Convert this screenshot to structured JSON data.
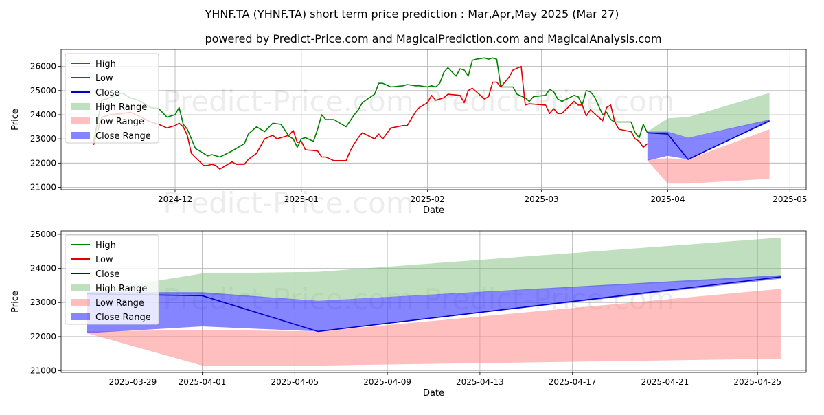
{
  "title": "YHNF.TA (YHNF.TA) short term price prediction : Mar,Apr,May 2025 (Mar 27)",
  "subtitle": "powered by Predict-Price.com and MagicalPrediction.com and MagicalAnalysis.com",
  "watermark": "Predict-Price.com",
  "colors": {
    "high": "#008000",
    "low": "#e00000",
    "close": "#0000cc",
    "high_range": "#7fbf7f",
    "low_range": "#ff8080",
    "close_range": "#3333ff"
  },
  "chart_data": [
    {
      "type": "line",
      "xlabel": "Date",
      "ylabel": "Price",
      "x_range": [
        "2024-11-03",
        "2025-05-05"
      ],
      "ylim": [
        20900,
        26700
      ],
      "xticks": [
        "2024-12-01",
        "2025-01-01",
        "2025-02-01",
        "2025-03-01",
        "2025-04-01",
        "2025-05-01"
      ],
      "xtick_labels": [
        "2024-12",
        "2025-01",
        "2025-02",
        "2025-03",
        "2025-04",
        "2025-05"
      ],
      "yticks": [
        21000,
        22000,
        23000,
        24000,
        25000,
        26000
      ],
      "grid": true,
      "legend": "top-left",
      "legend_entries": [
        "High",
        "Low",
        "Close",
        "High Range",
        "Low Range",
        "Close Range"
      ],
      "series": [
        {
          "name": "High",
          "x": [
            "2024-11-11",
            "2024-11-13",
            "2024-11-15",
            "2024-11-18",
            "2024-11-20",
            "2024-11-22",
            "2024-11-25",
            "2024-11-27",
            "2024-11-29",
            "2024-12-01",
            "2024-12-02",
            "2024-12-03",
            "2024-12-04",
            "2024-12-06",
            "2024-12-08",
            "2024-12-09",
            "2024-12-10",
            "2024-12-12",
            "2024-12-15",
            "2024-12-16",
            "2024-12-18",
            "2024-12-19",
            "2024-12-21",
            "2024-12-23",
            "2024-12-25",
            "2024-12-27",
            "2024-12-29",
            "2024-12-30",
            "2024-12-31",
            "2025-01-01",
            "2025-01-02",
            "2025-01-04",
            "2025-01-05",
            "2025-01-06",
            "2025-01-07",
            "2025-01-09",
            "2025-01-12",
            "2025-01-14",
            "2025-01-15",
            "2025-01-16",
            "2025-01-19",
            "2025-01-20",
            "2025-01-21",
            "2025-01-23",
            "2025-01-26",
            "2025-01-27",
            "2025-01-29",
            "2025-01-30",
            "2025-02-01",
            "2025-02-02",
            "2025-02-03",
            "2025-02-04",
            "2025-02-05",
            "2025-02-06",
            "2025-02-08",
            "2025-02-09",
            "2025-02-10",
            "2025-02-11",
            "2025-02-12",
            "2025-02-13",
            "2025-02-15",
            "2025-02-16",
            "2025-02-17",
            "2025-02-18",
            "2025-02-19",
            "2025-02-21",
            "2025-02-22",
            "2025-02-23",
            "2025-02-25",
            "2025-02-26",
            "2025-02-27",
            "2025-03-02",
            "2025-03-03",
            "2025-03-04",
            "2025-03-05",
            "2025-03-06",
            "2025-03-09",
            "2025-03-10",
            "2025-03-11",
            "2025-03-12",
            "2025-03-13",
            "2025-03-14",
            "2025-03-16",
            "2025-03-17",
            "2025-03-18",
            "2025-03-19",
            "2025-03-20",
            "2025-03-23",
            "2025-03-24",
            "2025-03-25",
            "2025-03-26",
            "2025-03-27"
          ],
          "values": [
            22900,
            24600,
            24700,
            24900,
            24700,
            24600,
            24300,
            24250,
            23900,
            24000,
            24300,
            23600,
            23400,
            22600,
            22400,
            22300,
            22350,
            22250,
            22500,
            22600,
            22800,
            23200,
            23500,
            23300,
            23650,
            23600,
            23100,
            23000,
            22650,
            23000,
            23050,
            22900,
            23400,
            24000,
            23800,
            23800,
            23500,
            24000,
            24200,
            24500,
            24850,
            25300,
            25300,
            25150,
            25200,
            25250,
            25200,
            25200,
            25150,
            25200,
            25150,
            25300,
            25750,
            25950,
            25600,
            25900,
            25850,
            25600,
            26250,
            26300,
            26350,
            26300,
            26350,
            26300,
            25150,
            25150,
            25150,
            24850,
            24700,
            24550,
            24750,
            24800,
            25050,
            24950,
            24650,
            24550,
            24800,
            24750,
            24400,
            25000,
            24950,
            24750,
            24000,
            24100,
            23800,
            23700,
            23700,
            23700,
            23250,
            23050,
            23600,
            23250
          ]
        },
        {
          "name": "Low",
          "x": [
            "2024-11-11",
            "2024-11-13",
            "2024-11-15",
            "2024-11-18",
            "2024-11-20",
            "2024-11-22",
            "2024-11-25",
            "2024-11-27",
            "2024-11-29",
            "2024-12-01",
            "2024-12-02",
            "2024-12-03",
            "2024-12-04",
            "2024-12-05",
            "2024-12-08",
            "2024-12-09",
            "2024-12-10",
            "2024-12-11",
            "2024-12-12",
            "2024-12-15",
            "2024-12-16",
            "2024-12-18",
            "2024-12-19",
            "2024-12-21",
            "2024-12-23",
            "2024-12-25",
            "2024-12-26",
            "2024-12-27",
            "2024-12-29",
            "2024-12-30",
            "2024-12-31",
            "2025-01-01",
            "2025-01-02",
            "2025-01-05",
            "2025-01-06",
            "2025-01-07",
            "2025-01-09",
            "2025-01-12",
            "2025-01-13",
            "2025-01-14",
            "2025-01-15",
            "2025-01-16",
            "2025-01-19",
            "2025-01-20",
            "2025-01-21",
            "2025-01-23",
            "2025-01-26",
            "2025-01-27",
            "2025-01-29",
            "2025-01-30",
            "2025-02-01",
            "2025-02-02",
            "2025-02-03",
            "2025-02-04",
            "2025-02-05",
            "2025-02-06",
            "2025-02-09",
            "2025-02-10",
            "2025-02-11",
            "2025-02-12",
            "2025-02-15",
            "2025-02-16",
            "2025-02-17",
            "2025-02-18",
            "2025-02-19",
            "2025-02-21",
            "2025-02-22",
            "2025-02-24",
            "2025-02-25",
            "2025-02-26",
            "2025-03-02",
            "2025-03-03",
            "2025-03-04",
            "2025-03-05",
            "2025-03-06",
            "2025-03-09",
            "2025-03-10",
            "2025-03-11",
            "2025-03-12",
            "2025-03-13",
            "2025-03-16",
            "2025-03-17",
            "2025-03-18",
            "2025-03-19",
            "2025-03-20",
            "2025-03-23",
            "2025-03-24",
            "2025-03-25",
            "2025-03-26",
            "2025-03-27"
          ],
          "values": [
            22750,
            23900,
            24000,
            24050,
            24100,
            23950,
            23700,
            23600,
            23450,
            23550,
            23650,
            23500,
            23150,
            22400,
            21900,
            21900,
            21950,
            21900,
            21750,
            22050,
            21950,
            21950,
            22150,
            22400,
            23000,
            23150,
            23000,
            23050,
            23150,
            23350,
            22850,
            22900,
            22550,
            22500,
            22250,
            22250,
            22100,
            22100,
            22500,
            22800,
            23050,
            23250,
            23000,
            23200,
            23000,
            23450,
            23550,
            23550,
            24100,
            24300,
            24500,
            24800,
            24600,
            24650,
            24700,
            24850,
            24800,
            24500,
            25000,
            25100,
            24650,
            24750,
            25350,
            25350,
            25150,
            25550,
            25850,
            26000,
            24400,
            24450,
            24400,
            24050,
            24250,
            24050,
            24050,
            24550,
            24400,
            24400,
            23950,
            24200,
            23750,
            24300,
            24400,
            23700,
            23400,
            23300,
            23000,
            22900,
            22650,
            22800
          ],
          "values_note": ""
        },
        {
          "name": "Close",
          "x": [
            "2025-03-27",
            "2025-04-01",
            "2025-04-06",
            "2025-04-26"
          ],
          "values": [
            23250,
            23200,
            22150,
            23750
          ]
        },
        {
          "name": "High Range",
          "x": [
            "2025-03-27",
            "2025-04-01",
            "2025-04-06",
            "2025-04-26"
          ],
          "upper": [
            23300,
            23850,
            23900,
            24900
          ],
          "lower": [
            23250,
            23250,
            23050,
            23750
          ]
        },
        {
          "name": "Low Range",
          "x": [
            "2025-03-27",
            "2025-04-01",
            "2025-04-06",
            "2025-04-26"
          ],
          "upper": [
            22150,
            22200,
            22150,
            23400
          ],
          "lower": [
            22100,
            21150,
            21150,
            21350
          ]
        },
        {
          "name": "Close Range",
          "x": [
            "2025-03-27",
            "2025-04-01",
            "2025-04-06",
            "2025-04-26"
          ],
          "upper": [
            23300,
            23300,
            23050,
            23800
          ],
          "lower": [
            22100,
            22300,
            22150,
            23700
          ]
        }
      ]
    },
    {
      "type": "line",
      "xlabel": "Date",
      "ylabel": "Price",
      "x_range": [
        "2025-03-25.9",
        "2025-04-27.1"
      ],
      "ylim": [
        20950,
        25100
      ],
      "xticks": [
        "2025-03-29",
        "2025-04-01",
        "2025-04-05",
        "2025-04-09",
        "2025-04-13",
        "2025-04-17",
        "2025-04-21",
        "2025-04-25"
      ],
      "xtick_labels": [
        "2025-03-29",
        "2025-04-01",
        "2025-04-05",
        "2025-04-09",
        "2025-04-13",
        "2025-04-17",
        "2025-04-21",
        "2025-04-25"
      ],
      "yticks": [
        21000,
        22000,
        23000,
        24000,
        25000
      ],
      "grid": true,
      "legend": "top-left",
      "legend_entries": [
        "High",
        "Low",
        "Close",
        "High Range",
        "Low Range",
        "Close Range"
      ],
      "series": [
        {
          "name": "Close",
          "x": [
            "2025-03-27",
            "2025-04-01",
            "2025-04-06",
            "2025-04-26"
          ],
          "values": [
            23250,
            23200,
            22150,
            23750
          ]
        },
        {
          "name": "High Range",
          "x": [
            "2025-03-27",
            "2025-04-01",
            "2025-04-06",
            "2025-04-26"
          ],
          "upper": [
            23300,
            23850,
            23900,
            24900
          ],
          "lower": [
            23250,
            23250,
            23050,
            23750
          ]
        },
        {
          "name": "Low Range",
          "x": [
            "2025-03-27",
            "2025-04-01",
            "2025-04-06",
            "2025-04-26"
          ],
          "upper": [
            22150,
            22200,
            22150,
            23400
          ],
          "lower": [
            22100,
            21150,
            21150,
            21350
          ]
        },
        {
          "name": "Close Range",
          "x": [
            "2025-03-27",
            "2025-04-01",
            "2025-04-06",
            "2025-04-26"
          ],
          "upper": [
            23300,
            23300,
            23050,
            23800
          ],
          "lower": [
            22100,
            22300,
            22150,
            23700
          ]
        }
      ]
    }
  ]
}
